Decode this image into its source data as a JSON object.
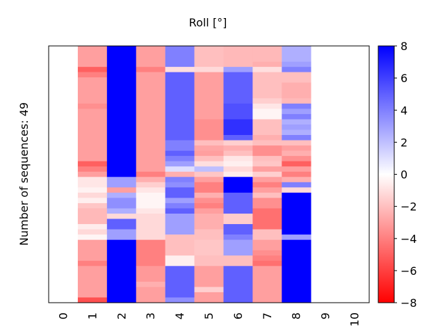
{
  "chart_data": {
    "type": "heatmap",
    "title": "Roll [°]",
    "ylabel": "Number of sequences: 49",
    "xlabel": "",
    "x_ticks": [
      "0",
      "1",
      "2",
      "3",
      "4",
      "5",
      "6",
      "7",
      "8",
      "9",
      "10"
    ],
    "xlim": [
      0,
      11
    ],
    "n_rows": 49,
    "colorbar": {
      "vmin": -8,
      "vmax": 8,
      "ticks": [
        "8",
        "6",
        "4",
        "2",
        "0",
        "−2",
        "−4",
        "−6",
        "−8"
      ],
      "tick_values": [
        8,
        6,
        4,
        2,
        0,
        -2,
        -4,
        -6,
        -8
      ],
      "colors": {
        "low": "#ff0000",
        "mid": "#ffffff",
        "high": "#0000ff"
      }
    },
    "column_segments": [
      {
        "column": 1,
        "segments": [
          [
            0,
            4,
            -3
          ],
          [
            4,
            5,
            -5
          ],
          [
            5,
            6,
            -4
          ],
          [
            6,
            11,
            -3
          ],
          [
            11,
            12,
            -3.5
          ],
          [
            12,
            22,
            -3
          ],
          [
            22,
            23,
            -5
          ],
          [
            23,
            24,
            -4
          ],
          [
            24,
            25,
            -3
          ],
          [
            25,
            27,
            -0.8
          ],
          [
            27,
            28,
            -0.4
          ],
          [
            28,
            29,
            -1.2
          ],
          [
            29,
            30,
            -0.5
          ],
          [
            30,
            31,
            -1.8
          ],
          [
            31,
            34,
            -2.2
          ],
          [
            34,
            35,
            -0.6
          ],
          [
            35,
            36,
            -1.2
          ],
          [
            36,
            37,
            -0.3
          ],
          [
            37,
            41,
            -3
          ],
          [
            41,
            42,
            -4
          ],
          [
            42,
            48,
            -3
          ],
          [
            48,
            49,
            -5.5
          ]
        ]
      },
      {
        "column": 2,
        "segments": [
          [
            0,
            25,
            8
          ],
          [
            25,
            27,
            3
          ],
          [
            27,
            28,
            -3
          ],
          [
            28,
            29,
            2.5
          ],
          [
            29,
            31,
            3.5
          ],
          [
            31,
            32,
            2.5
          ],
          [
            32,
            33,
            -1.2
          ],
          [
            33,
            35,
            5
          ],
          [
            35,
            37,
            3
          ],
          [
            37,
            49,
            8
          ]
        ]
      },
      {
        "column": 3,
        "segments": [
          [
            0,
            4,
            -3
          ],
          [
            4,
            5,
            -4
          ],
          [
            5,
            24,
            -3
          ],
          [
            24,
            25,
            -4
          ],
          [
            25,
            26,
            -2.5
          ],
          [
            26,
            27,
            -1.5
          ],
          [
            27,
            28,
            -0.8
          ],
          [
            28,
            31,
            -0.3
          ],
          [
            31,
            32,
            -0.8
          ],
          [
            32,
            37,
            -1.2
          ],
          [
            37,
            42,
            -4
          ],
          [
            42,
            45,
            -3.2
          ],
          [
            45,
            46,
            -2.5
          ],
          [
            46,
            49,
            -3
          ]
        ]
      },
      {
        "column": 4,
        "segments": [
          [
            0,
            4,
            4
          ],
          [
            4,
            5,
            -1
          ],
          [
            5,
            18,
            5
          ],
          [
            18,
            20,
            4
          ],
          [
            20,
            21,
            5
          ],
          [
            21,
            22,
            4
          ],
          [
            22,
            23,
            3
          ],
          [
            23,
            24,
            1
          ],
          [
            24,
            25,
            -2.5
          ],
          [
            25,
            26,
            4
          ],
          [
            26,
            27,
            3.5
          ],
          [
            27,
            29,
            5
          ],
          [
            29,
            30,
            3
          ],
          [
            30,
            31,
            4
          ],
          [
            31,
            32,
            5
          ],
          [
            32,
            36,
            3
          ],
          [
            36,
            40,
            -2
          ],
          [
            40,
            42,
            -0.5
          ],
          [
            42,
            48,
            5
          ],
          [
            48,
            49,
            3.5
          ]
        ]
      },
      {
        "column": 5,
        "segments": [
          [
            0,
            4,
            -2
          ],
          [
            4,
            5,
            -1.2
          ],
          [
            5,
            14,
            -3
          ],
          [
            14,
            18,
            -3.5
          ],
          [
            18,
            19,
            -2
          ],
          [
            19,
            20,
            -2.8
          ],
          [
            20,
            21,
            -3
          ],
          [
            21,
            22,
            -2
          ],
          [
            22,
            23,
            -1
          ],
          [
            23,
            24,
            2
          ],
          [
            24,
            25,
            -1.8
          ],
          [
            25,
            26,
            -3
          ],
          [
            26,
            28,
            -4
          ],
          [
            28,
            29,
            -2.5
          ],
          [
            29,
            30,
            -3.5
          ],
          [
            30,
            31,
            -4
          ],
          [
            31,
            32,
            -3
          ],
          [
            32,
            35,
            -2.5
          ],
          [
            35,
            37,
            -2
          ],
          [
            37,
            40,
            -1.8
          ],
          [
            40,
            42,
            -2
          ],
          [
            42,
            46,
            -3
          ],
          [
            46,
            47,
            -1.5
          ],
          [
            47,
            49,
            -3
          ]
        ]
      },
      {
        "column": 6,
        "segments": [
          [
            0,
            4,
            -2.2
          ],
          [
            4,
            5,
            3
          ],
          [
            5,
            11,
            5
          ],
          [
            11,
            14,
            5.5
          ],
          [
            14,
            17,
            6.5
          ],
          [
            17,
            18,
            5
          ],
          [
            18,
            19,
            -1.5
          ],
          [
            19,
            20,
            -2.5
          ],
          [
            20,
            21,
            -2
          ],
          [
            21,
            22,
            -0.8
          ],
          [
            22,
            23,
            -0.5
          ],
          [
            23,
            24,
            -1.2
          ],
          [
            24,
            25,
            -0.6
          ],
          [
            25,
            28,
            8
          ],
          [
            28,
            32,
            5
          ],
          [
            32,
            34,
            -1.6
          ],
          [
            34,
            36,
            5
          ],
          [
            36,
            37,
            4
          ],
          [
            37,
            40,
            3
          ],
          [
            40,
            42,
            -2
          ],
          [
            42,
            49,
            5
          ]
        ]
      },
      {
        "column": 7,
        "segments": [
          [
            0,
            3,
            -2.2
          ],
          [
            3,
            4,
            -2.5
          ],
          [
            4,
            5,
            -1
          ],
          [
            5,
            10,
            -2
          ],
          [
            10,
            11,
            -1.5
          ],
          [
            11,
            12,
            -0.8
          ],
          [
            12,
            14,
            -0.3
          ],
          [
            14,
            17,
            -2
          ],
          [
            17,
            18,
            -2.5
          ],
          [
            18,
            19,
            -2
          ],
          [
            19,
            21,
            -3.5
          ],
          [
            21,
            22,
            -2
          ],
          [
            22,
            23,
            -1.8
          ],
          [
            23,
            24,
            -3
          ],
          [
            24,
            25,
            -1.5
          ],
          [
            25,
            26,
            -3
          ],
          [
            26,
            27,
            -4
          ],
          [
            27,
            28,
            -3
          ],
          [
            28,
            29,
            -2
          ],
          [
            29,
            31,
            -3.5
          ],
          [
            31,
            35,
            -4.5
          ],
          [
            35,
            37,
            -2
          ],
          [
            37,
            39,
            -3
          ],
          [
            39,
            40,
            -3.5
          ],
          [
            40,
            41,
            -4
          ],
          [
            41,
            42,
            -4.5
          ],
          [
            42,
            49,
            -3
          ]
        ]
      },
      {
        "column": 8,
        "segments": [
          [
            0,
            3,
            2.5
          ],
          [
            3,
            4,
            3
          ],
          [
            4,
            5,
            4
          ],
          [
            5,
            7,
            -2
          ],
          [
            7,
            10,
            -2.5
          ],
          [
            10,
            11,
            -2.2
          ],
          [
            11,
            12,
            4
          ],
          [
            12,
            13,
            3
          ],
          [
            13,
            14,
            4
          ],
          [
            14,
            15,
            2.5
          ],
          [
            15,
            16,
            3
          ],
          [
            16,
            17,
            2.5
          ],
          [
            17,
            18,
            4
          ],
          [
            18,
            19,
            -2
          ],
          [
            19,
            20,
            -3
          ],
          [
            20,
            21,
            -2.5
          ],
          [
            21,
            22,
            -3.5
          ],
          [
            22,
            23,
            -5
          ],
          [
            23,
            24,
            -3
          ],
          [
            24,
            25,
            -4
          ],
          [
            25,
            26,
            -2.5
          ],
          [
            26,
            27,
            4
          ],
          [
            27,
            28,
            -1.2
          ],
          [
            28,
            36,
            8
          ],
          [
            36,
            37,
            3
          ],
          [
            37,
            49,
            8
          ]
        ]
      }
    ]
  }
}
